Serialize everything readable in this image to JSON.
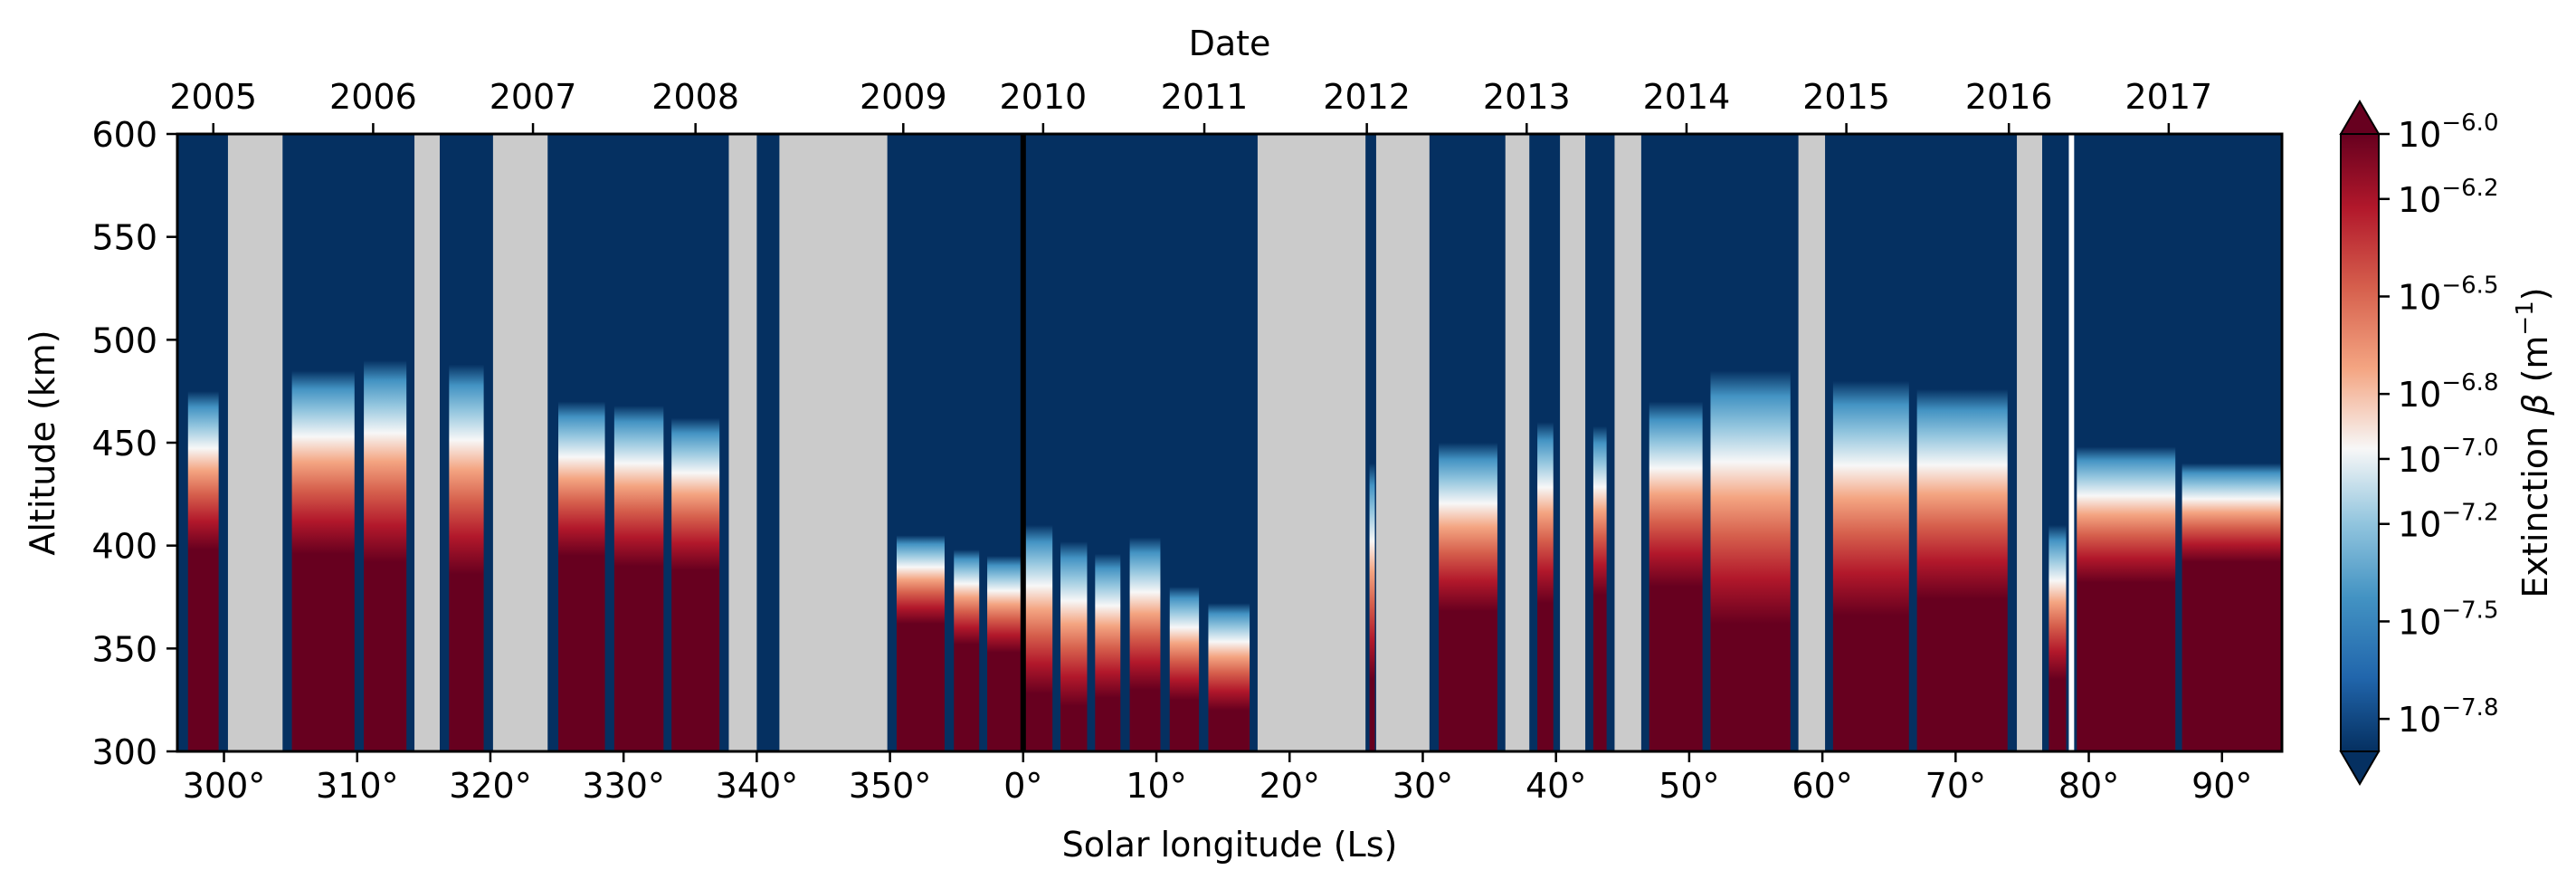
{
  "chart_data": {
    "type": "heatmap",
    "xlabel": "Solar longitude (Ls)",
    "ylabel": "Altitude (km)",
    "x_top_label": "Date",
    "colorbar_label": "Extinction β (m⁻¹)",
    "colorbar_label_parts": [
      "Extinction ",
      "β",
      " (m",
      "−1",
      ")"
    ],
    "x_ticks": [
      {
        "ls": 300,
        "label": "300°"
      },
      {
        "ls": 310,
        "label": "310°"
      },
      {
        "ls": 320,
        "label": "320°"
      },
      {
        "ls": 330,
        "label": "330°"
      },
      {
        "ls": 340,
        "label": "340°"
      },
      {
        "ls": 350,
        "label": "350°"
      },
      {
        "ls": 360,
        "label": "0°"
      },
      {
        "ls": 370,
        "label": "10°"
      },
      {
        "ls": 380,
        "label": "20°"
      },
      {
        "ls": 390,
        "label": "30°"
      },
      {
        "ls": 400,
        "label": "40°"
      },
      {
        "ls": 410,
        "label": "50°"
      },
      {
        "ls": 420,
        "label": "60°"
      },
      {
        "ls": 430,
        "label": "70°"
      },
      {
        "ls": 440,
        "label": "80°"
      },
      {
        "ls": 450,
        "label": "90°"
      }
    ],
    "xlim_ls": [
      296.5,
      454.5
    ],
    "ylim": [
      300,
      600
    ],
    "y_ticks": [
      300,
      350,
      400,
      450,
      500,
      550,
      600
    ],
    "top_ticks": [
      {
        "ls": 299.2,
        "label": "2005"
      },
      {
        "ls": 311.2,
        "label": "2006"
      },
      {
        "ls": 323.2,
        "label": "2007"
      },
      {
        "ls": 335.4,
        "label": "2008"
      },
      {
        "ls": 351.0,
        "label": "2009"
      },
      {
        "ls": 361.5,
        "label": "2010"
      },
      {
        "ls": 373.6,
        "label": "2011"
      },
      {
        "ls": 385.8,
        "label": "2012"
      },
      {
        "ls": 397.8,
        "label": "2013"
      },
      {
        "ls": 409.8,
        "label": "2014"
      },
      {
        "ls": 421.8,
        "label": "2015"
      },
      {
        "ls": 434.0,
        "label": "2016"
      },
      {
        "ls": 446.0,
        "label": "2017"
      }
    ],
    "colorbar": {
      "scale": "log",
      "vmin_exp": -7.9,
      "vmax_exp": -6.0,
      "extend": "both",
      "ticks": [
        {
          "exp": -6.0,
          "label": "−6.0"
        },
        {
          "exp": -6.2,
          "label": "−6.2"
        },
        {
          "exp": -6.5,
          "label": "−6.5"
        },
        {
          "exp": -6.8,
          "label": "−6.8"
        },
        {
          "exp": -7.0,
          "label": "−7.0"
        },
        {
          "exp": -7.2,
          "label": "−7.2"
        },
        {
          "exp": -7.5,
          "label": "−7.5"
        },
        {
          "exp": -7.8,
          "label": "−7.8"
        }
      ]
    },
    "vertical_line_ls": 360,
    "no_data_color": "#cbcbcb",
    "no_data_ranges": [
      [
        300.3,
        304.4
      ],
      [
        314.3,
        316.2
      ],
      [
        320.2,
        324.3
      ],
      [
        337.9,
        340.0
      ],
      [
        341.7,
        349.8
      ],
      [
        377.6,
        385.7
      ],
      [
        386.5,
        390.5
      ],
      [
        396.2,
        398.0
      ],
      [
        400.3,
        402.2
      ],
      [
        404.4,
        406.4
      ],
      [
        418.2,
        420.2
      ],
      [
        434.6,
        436.5
      ]
    ],
    "gap_ranges": [
      [
        438.5,
        438.9
      ]
    ],
    "profiles": [
      {
        "ls": [
          297.3,
          299.6
        ],
        "lower": 398,
        "upper": 475
      },
      {
        "ls": [
          305.1,
          309.8
        ],
        "lower": 396,
        "upper": 485
      },
      {
        "ls": [
          310.5,
          313.7
        ],
        "lower": 392,
        "upper": 490
      },
      {
        "ls": [
          316.9,
          319.5
        ],
        "lower": 386,
        "upper": 488
      },
      {
        "ls": [
          325.1,
          328.6
        ],
        "lower": 395,
        "upper": 470
      },
      {
        "ls": [
          329.3,
          333.0
        ],
        "lower": 390,
        "upper": 468
      },
      {
        "ls": [
          333.6,
          337.2
        ],
        "lower": 388,
        "upper": 462
      },
      {
        "ls": [
          350.5,
          354.1
        ],
        "lower": 362,
        "upper": 405
      },
      {
        "ls": [
          354.8,
          356.7
        ],
        "lower": 352,
        "upper": 398
      },
      {
        "ls": [
          357.3,
          359.9
        ],
        "lower": 348,
        "upper": 395
      },
      {
        "ls": [
          360.1,
          362.2
        ],
        "lower": 328,
        "upper": 410
      },
      {
        "ls": [
          362.8,
          364.8
        ],
        "lower": 322,
        "upper": 402
      },
      {
        "ls": [
          365.4,
          367.3
        ],
        "lower": 326,
        "upper": 396
      },
      {
        "ls": [
          368.0,
          370.3
        ],
        "lower": 330,
        "upper": 404
      },
      {
        "ls": [
          371.0,
          373.2
        ],
        "lower": 325,
        "upper": 380
      },
      {
        "ls": [
          373.9,
          377.0
        ],
        "lower": 320,
        "upper": 372
      },
      {
        "ls": [
          386.0,
          386.4
        ],
        "lower": 335,
        "upper": 440
      },
      {
        "ls": [
          391.2,
          395.6
        ],
        "lower": 368,
        "upper": 450
      },
      {
        "ls": [
          398.6,
          399.8
        ],
        "lower": 372,
        "upper": 460
      },
      {
        "ls": [
          402.8,
          403.8
        ],
        "lower": 376,
        "upper": 458
      },
      {
        "ls": [
          407.0,
          411.0
        ],
        "lower": 380,
        "upper": 470
      },
      {
        "ls": [
          411.6,
          417.6
        ],
        "lower": 362,
        "upper": 485
      },
      {
        "ls": [
          420.8,
          426.5
        ],
        "lower": 366,
        "upper": 480
      },
      {
        "ls": [
          427.1,
          433.9
        ],
        "lower": 374,
        "upper": 476
      },
      {
        "ls": [
          437.0,
          438.3
        ],
        "lower": 335,
        "upper": 410
      },
      {
        "ls": [
          439.1,
          446.5
        ],
        "lower": 382,
        "upper": 448
      },
      {
        "ls": [
          447.0,
          454.4
        ],
        "lower": 392,
        "upper": 440
      }
    ]
  }
}
